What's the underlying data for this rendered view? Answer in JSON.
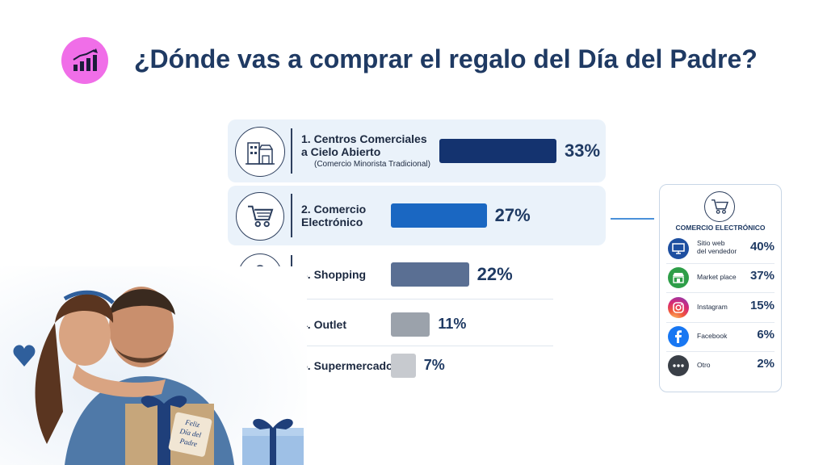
{
  "title": "¿Dónde vas a comprar el regalo del Día del Padre?",
  "header_icon": "bar-chart-growth-icon",
  "chart_data": {
    "type": "bar",
    "orientation": "horizontal",
    "title": "¿Dónde vas a comprar el regalo del Día del Padre?",
    "categories": [
      "1. Centros Comerciales\na Cielo Abierto",
      "2. Comercio\nElectrónico",
      "3. Shopping",
      "4. Outlet",
      "5. Supermercados"
    ],
    "subtitles": [
      "(Comercio Minorista Tradicional)",
      "",
      "",
      "",
      ""
    ],
    "values": [
      33,
      27,
      22,
      11,
      7
    ],
    "value_labels": [
      "33%",
      "27%",
      "22%",
      "11%",
      "7%"
    ],
    "icons": [
      "storefront-buildings-icon",
      "shopping-cart-icon",
      "shopping-bag-icon",
      "price-tag-icon",
      "grocery-basket-icon"
    ],
    "bar_colors": [
      "#14336f",
      "#1a67c2",
      "#5a6f93",
      "#9ba2ab",
      "#c7cacf"
    ],
    "xlim": [
      0,
      33
    ],
    "grid": false,
    "legend": "none"
  },
  "ecommerce_breakdown": {
    "title": "COMERCIO ELECTRÓNICO",
    "icon": "shopping-cart-icon",
    "items": [
      {
        "label": "Sitio web\ndel vendedor",
        "value": "40%",
        "icon": "monitor-icon",
        "color": "#1e4fa0"
      },
      {
        "label": "Market place",
        "value": "37%",
        "icon": "marketplace-store-icon",
        "color": "#2e9e48"
      },
      {
        "label": "Instagram",
        "value": "15%",
        "icon": "instagram-icon",
        "color": "#d6336c"
      },
      {
        "label": "Facebook",
        "value": "6%",
        "icon": "facebook-icon",
        "color": "#1877f2"
      },
      {
        "label": "Otro",
        "value": "2%",
        "icon": "more-dots-icon",
        "color": "#3a3f47"
      }
    ]
  },
  "photo": {
    "gift_tag_text": "Feliz\nDía del\nPadre"
  }
}
